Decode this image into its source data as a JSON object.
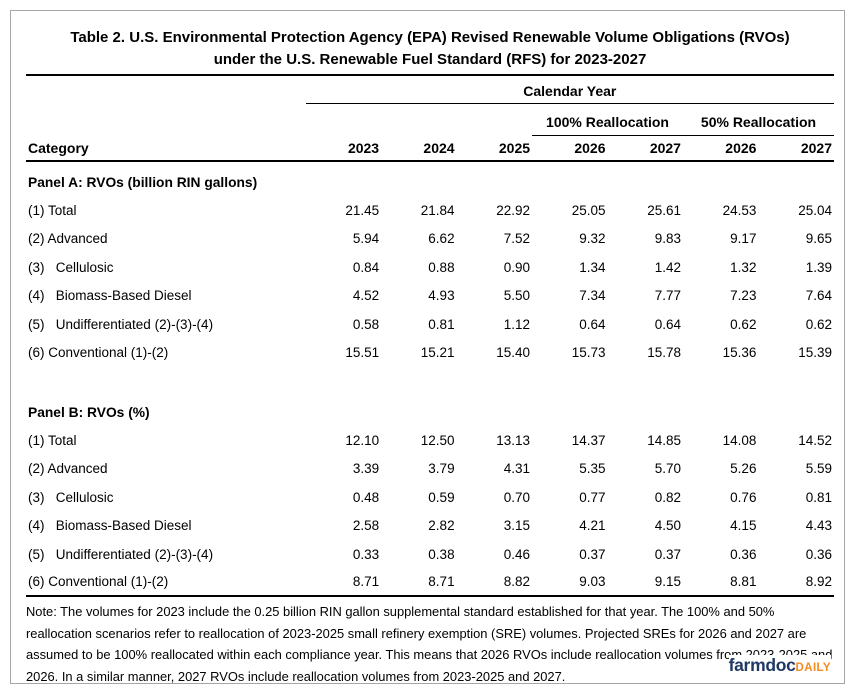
{
  "chart_data": {
    "type": "table",
    "title_line1": "Table 2. U.S. Environmental Protection Agency (EPA) Revised Renewable Volume Obligations (RVOs)",
    "title_line2": "under the U.S. Renewable Fuel Standard (RFS) for 2023-2027",
    "column_group_header": "Calendar Year",
    "subgroup_headers": [
      "100% Reallocation",
      "50% Reallocation"
    ],
    "category_header": "Category",
    "year_columns": [
      "2023",
      "2024",
      "2025",
      "2026",
      "2027",
      "2026",
      "2027"
    ],
    "panels": [
      {
        "title": "Panel A: RVOs (billion RIN gallons)",
        "rows": [
          {
            "label": "(1) Total",
            "values": [
              "21.45",
              "21.84",
              "22.92",
              "25.05",
              "25.61",
              "24.53",
              "25.04"
            ]
          },
          {
            "label": "(2) Advanced",
            "values": [
              "5.94",
              "6.62",
              "7.52",
              "9.32",
              "9.83",
              "9.17",
              "9.65"
            ]
          },
          {
            "label": "(3)   Cellulosic",
            "values": [
              "0.84",
              "0.88",
              "0.90",
              "1.34",
              "1.42",
              "1.32",
              "1.39"
            ]
          },
          {
            "label": "(4)   Biomass-Based Diesel",
            "values": [
              "4.52",
              "4.93",
              "5.50",
              "7.34",
              "7.77",
              "7.23",
              "7.64"
            ]
          },
          {
            "label": "(5)   Undifferentiated (2)-(3)-(4)",
            "values": [
              "0.58",
              "0.81",
              "1.12",
              "0.64",
              "0.64",
              "0.62",
              "0.62"
            ]
          },
          {
            "label": "(6) Conventional (1)-(2)",
            "values": [
              "15.51",
              "15.21",
              "15.40",
              "15.73",
              "15.78",
              "15.36",
              "15.39"
            ]
          }
        ]
      },
      {
        "title": "Panel B: RVOs (%)",
        "rows": [
          {
            "label": "(1) Total",
            "values": [
              "12.10",
              "12.50",
              "13.13",
              "14.37",
              "14.85",
              "14.08",
              "14.52"
            ]
          },
          {
            "label": "(2) Advanced",
            "values": [
              "3.39",
              "3.79",
              "4.31",
              "5.35",
              "5.70",
              "5.26",
              "5.59"
            ]
          },
          {
            "label": "(3)   Cellulosic",
            "values": [
              "0.48",
              "0.59",
              "0.70",
              "0.77",
              "0.82",
              "0.76",
              "0.81"
            ]
          },
          {
            "label": "(4)   Biomass-Based Diesel",
            "values": [
              "2.58",
              "2.82",
              "3.15",
              "4.21",
              "4.50",
              "4.15",
              "4.43"
            ]
          },
          {
            "label": "(5)   Undifferentiated (2)-(3)-(4)",
            "values": [
              "0.33",
              "0.38",
              "0.46",
              "0.37",
              "0.37",
              "0.36",
              "0.36"
            ]
          },
          {
            "label": "(6) Conventional (1)-(2)",
            "values": [
              "8.71",
              "8.71",
              "8.82",
              "9.03",
              "9.15",
              "8.81",
              "8.92"
            ]
          }
        ]
      }
    ],
    "note": "Note: The volumes for 2023 include the 0.25 billion RIN gallon supplemental standard established for that year. The 100% and 50% reallocation scenarios refer to reallocation of 2023-2025 small refinery exemption (SRE) volumes.  Projected SREs for 2026 and 2027 are assumed to be 100% reallocated within each compliance year.  This means that 2026 RVOs include reallocation volumes from 2023-2025 and 2026.  In a similar manner, 2027 RVOs include reallocation volumes from 2023-2025 and 2027."
  },
  "footer": {
    "logo_farmdoc": "farmdoc",
    "logo_daily": "DAILY"
  },
  "colors": {
    "logo_navy": "#1f3864",
    "logo_orange": "#f68b1f",
    "frame_border": "#a6a6a6",
    "text": "#000000"
  }
}
